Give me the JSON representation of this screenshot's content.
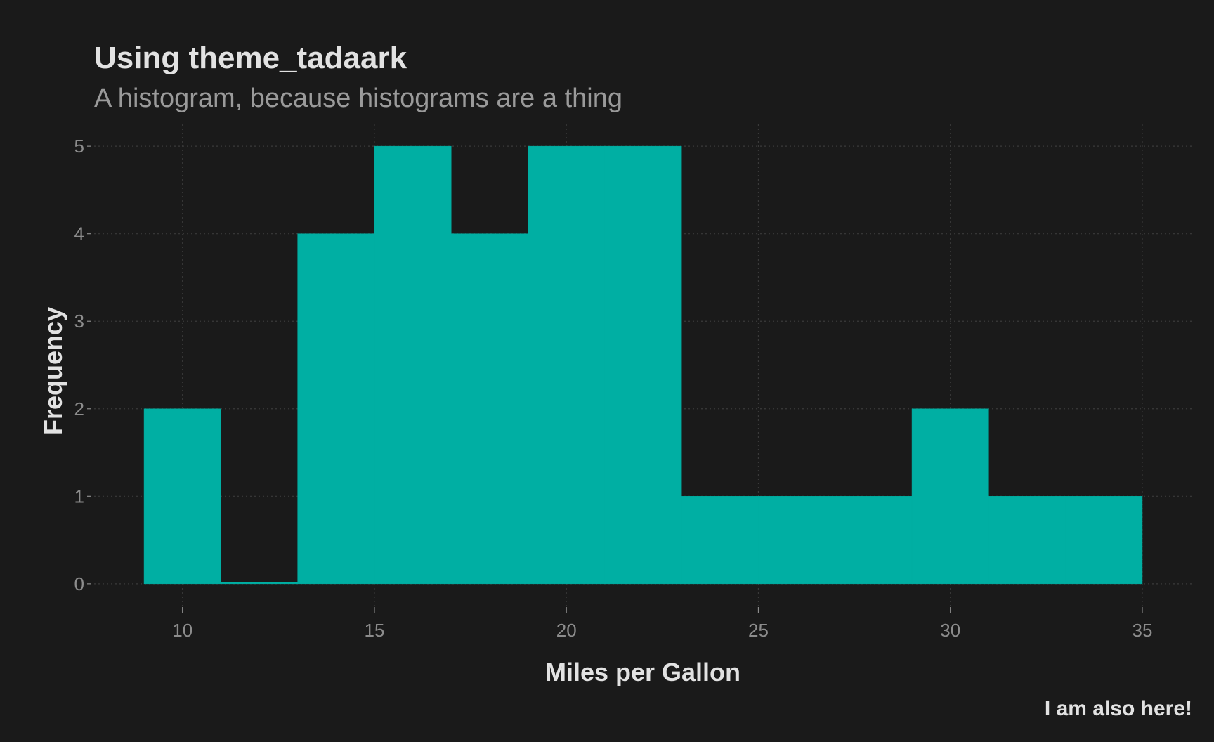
{
  "chart_data": {
    "type": "bar",
    "title": "Using theme_tadaark",
    "subtitle": "A histogram, because histograms are a thing",
    "xlabel": "Miles per Gallon",
    "ylabel": "Frequency",
    "caption": "I am also here!",
    "bins": [
      {
        "x0": 9,
        "x1": 11,
        "count": 2
      },
      {
        "x0": 11,
        "x1": 13,
        "count": 0
      },
      {
        "x0": 13,
        "x1": 15,
        "count": 4
      },
      {
        "x0": 15,
        "x1": 17,
        "count": 5
      },
      {
        "x0": 17,
        "x1": 19,
        "count": 4
      },
      {
        "x0": 19,
        "x1": 21,
        "count": 5
      },
      {
        "x0": 21,
        "x1": 23,
        "count": 5
      },
      {
        "x0": 23,
        "x1": 25,
        "count": 1
      },
      {
        "x0": 25,
        "x1": 27,
        "count": 1
      },
      {
        "x0": 27,
        "x1": 29,
        "count": 1
      },
      {
        "x0": 29,
        "x1": 31,
        "count": 2
      },
      {
        "x0": 31,
        "x1": 33,
        "count": 1
      },
      {
        "x0": 33,
        "x1": 35,
        "count": 1
      }
    ],
    "x_ticks": [
      10,
      15,
      20,
      25,
      30,
      35
    ],
    "y_ticks": [
      0,
      1,
      2,
      3,
      4,
      5
    ],
    "xlim": [
      7.7,
      36.3
    ],
    "ylim": [
      -0.25,
      5.25
    ],
    "grid": true,
    "legend": "none",
    "colors": {
      "background": "#1a1a1a",
      "bar": "#00afa3",
      "grid": "#3a3a3a",
      "title": "#e2e2e2",
      "subtitle": "#9a9a9a",
      "tick_label": "#8c8c8c",
      "axis_title": "#e2e2e2",
      "caption": "#e2e2e2"
    }
  }
}
